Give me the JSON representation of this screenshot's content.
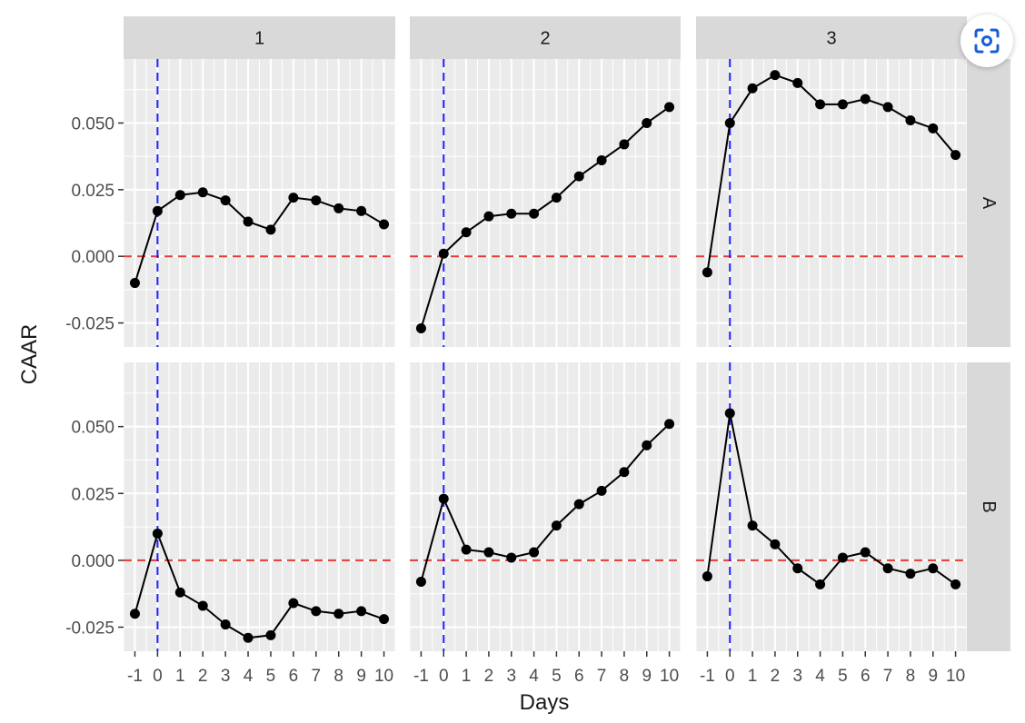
{
  "chart_data": {
    "type": "line",
    "layout": "faceted grid",
    "facet_columns": [
      "1",
      "2",
      "3"
    ],
    "facet_rows": [
      "A",
      "B"
    ],
    "xlabel": "Days",
    "ylabel": "CAAR",
    "x": [
      -1,
      0,
      1,
      2,
      3,
      4,
      5,
      6,
      7,
      8,
      9,
      10
    ],
    "xlim": [
      -1.5,
      10.5
    ],
    "ylim": [
      -0.034,
      0.074
    ],
    "yticks": [
      -0.025,
      0,
      0.025,
      0.05
    ],
    "ytick_labels": [
      "-0.025",
      "0.000",
      "0.025",
      "0.050"
    ],
    "xtick_labels": [
      "-1",
      "0",
      "1",
      "2",
      "3",
      "4",
      "5",
      "6",
      "7",
      "8",
      "9",
      "10"
    ],
    "reference_lines": {
      "vertical": {
        "x": 0,
        "color": "#1f1fff",
        "style": "dashed"
      },
      "horizontal": {
        "y": 0,
        "color": "#e53935",
        "style": "dashed"
      }
    },
    "grid": true,
    "panel_background": "#ebebeb",
    "strip_background": "#d9d9d9",
    "line_color": "#000000",
    "panels": [
      {
        "row": "A",
        "col": "1",
        "values": [
          -0.01,
          0.017,
          0.023,
          0.024,
          0.021,
          0.013,
          0.01,
          0.022,
          0.021,
          0.018,
          0.017,
          0.012
        ]
      },
      {
        "row": "A",
        "col": "2",
        "values": [
          -0.027,
          0.001,
          0.009,
          0.015,
          0.016,
          0.016,
          0.022,
          0.03,
          0.036,
          0.042,
          0.05,
          0.056
        ]
      },
      {
        "row": "A",
        "col": "3",
        "values": [
          -0.006,
          0.05,
          0.063,
          0.068,
          0.065,
          0.057,
          0.057,
          0.059,
          0.056,
          0.051,
          0.048,
          0.038
        ]
      },
      {
        "row": "B",
        "col": "1",
        "values": [
          -0.02,
          0.01,
          -0.012,
          -0.017,
          -0.024,
          -0.029,
          -0.028,
          -0.016,
          -0.019,
          -0.02,
          -0.019,
          -0.022
        ]
      },
      {
        "row": "B",
        "col": "2",
        "values": [
          -0.008,
          0.023,
          0.004,
          0.003,
          0.001,
          0.003,
          0.013,
          0.021,
          0.026,
          0.033,
          0.043,
          0.051
        ]
      },
      {
        "row": "B",
        "col": "3",
        "values": [
          -0.006,
          0.055,
          0.013,
          0.006,
          -0.003,
          -0.009,
          0.001,
          0.003,
          -0.003,
          -0.005,
          -0.003,
          -0.009
        ]
      }
    ]
  },
  "overlay": {
    "lens_icon": "visual-search-icon"
  }
}
